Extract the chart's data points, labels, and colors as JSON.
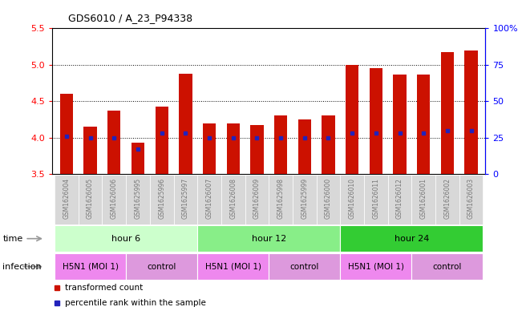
{
  "title": "GDS6010 / A_23_P94338",
  "samples": [
    "GSM1626004",
    "GSM1626005",
    "GSM1626006",
    "GSM1625995",
    "GSM1625996",
    "GSM1625997",
    "GSM1626007",
    "GSM1626008",
    "GSM1626009",
    "GSM1625998",
    "GSM1625999",
    "GSM1626000",
    "GSM1626010",
    "GSM1626011",
    "GSM1626012",
    "GSM1626001",
    "GSM1626002",
    "GSM1626003"
  ],
  "bar_heights": [
    4.6,
    4.15,
    4.37,
    3.93,
    4.43,
    4.88,
    4.2,
    4.2,
    4.17,
    4.3,
    4.25,
    4.3,
    5.0,
    4.95,
    4.87,
    4.87,
    5.17,
    5.2
  ],
  "percentile_ranks": [
    26,
    25,
    25,
    17,
    28,
    28,
    25,
    25,
    25,
    25,
    25,
    25,
    28,
    28,
    28,
    28,
    30,
    30
  ],
  "ymin": 3.5,
  "ymax": 5.5,
  "bar_color": "#cc1100",
  "dot_color": "#2222bb",
  "bg_color": "#ffffff",
  "time_colors": [
    "#ccffcc",
    "#88ee88",
    "#33cc33"
  ],
  "time_groups": [
    {
      "label": "hour 6",
      "start": 0,
      "end": 6
    },
    {
      "label": "hour 12",
      "start": 6,
      "end": 12
    },
    {
      "label": "hour 24",
      "start": 12,
      "end": 18
    }
  ],
  "infection_colors": [
    "#ee88ee",
    "#dd99dd",
    "#ee88ee",
    "#dd99dd",
    "#ee88ee",
    "#dd99dd"
  ],
  "infection_groups": [
    {
      "label": "H5N1 (MOI 1)",
      "start": 0,
      "end": 3
    },
    {
      "label": "control",
      "start": 3,
      "end": 6
    },
    {
      "label": "H5N1 (MOI 1)",
      "start": 6,
      "end": 9
    },
    {
      "label": "control",
      "start": 9,
      "end": 12
    },
    {
      "label": "H5N1 (MOI 1)",
      "start": 12,
      "end": 15
    },
    {
      "label": "control",
      "start": 15,
      "end": 18
    }
  ],
  "sample_label_color": "#777777",
  "bar_width": 0.55,
  "label_row_colors": [
    "#ccffcc",
    "#88ee88",
    "#33cc33"
  ],
  "arrow_color": "#aaaaaa"
}
